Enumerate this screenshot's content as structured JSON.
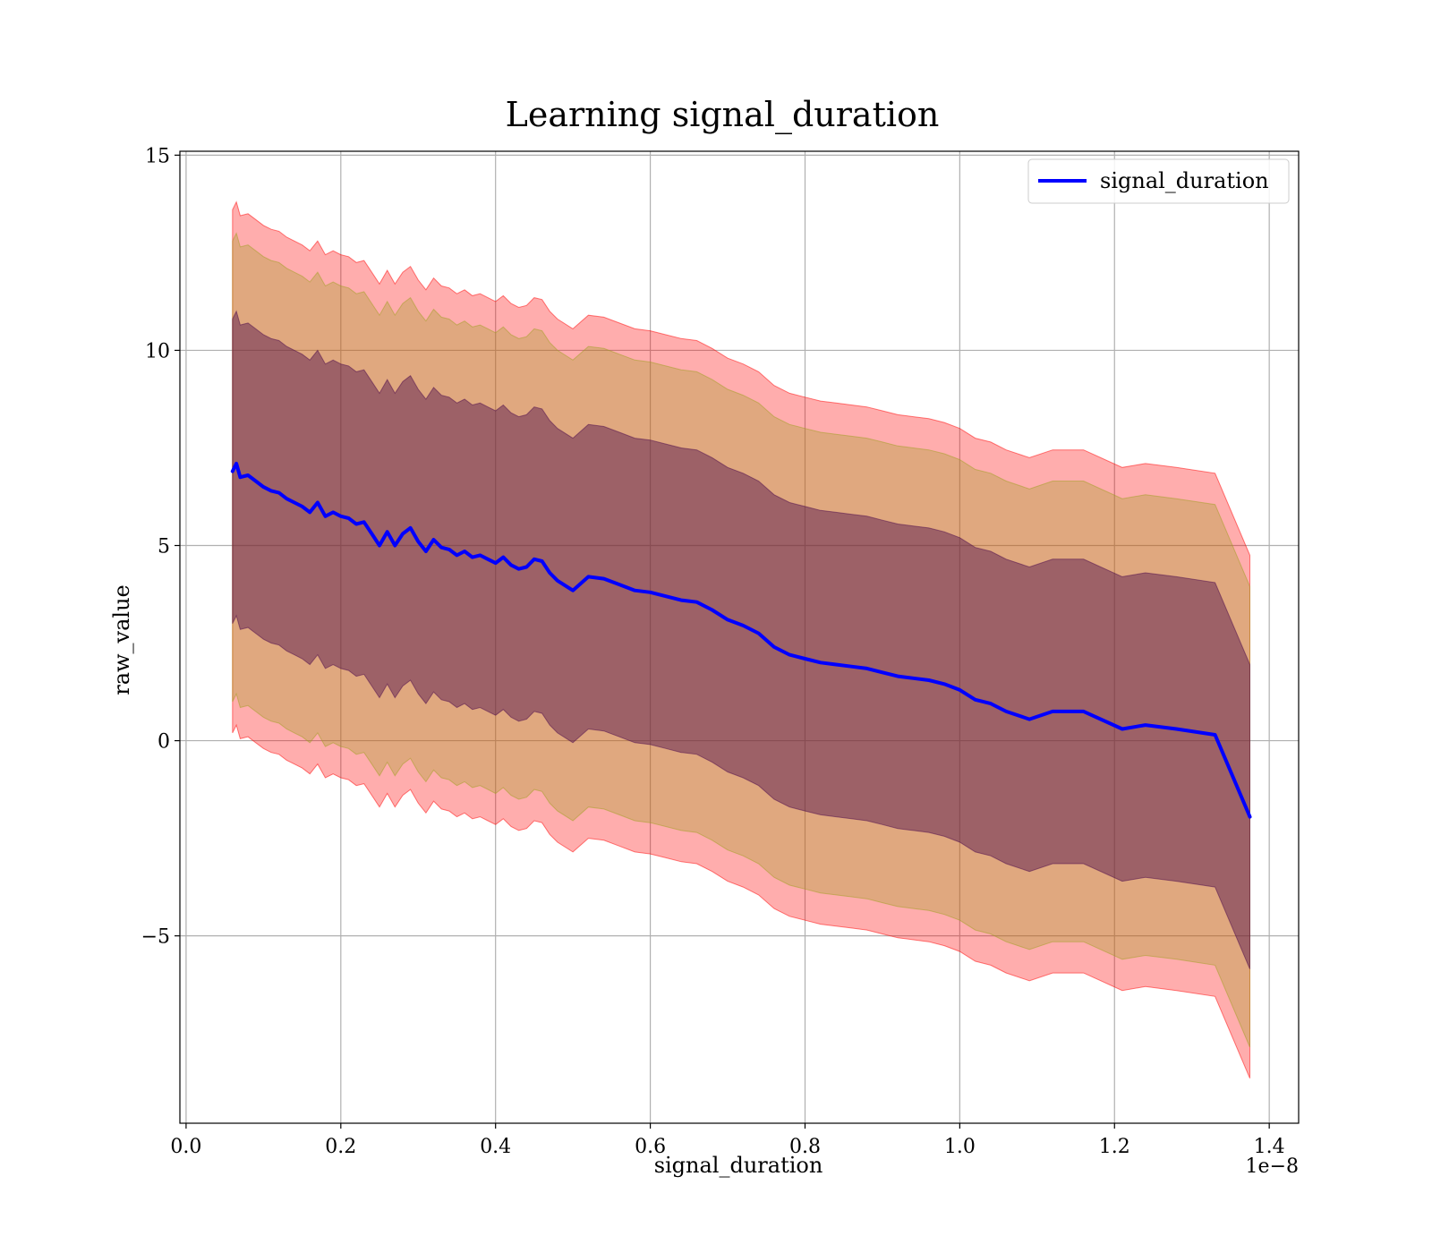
{
  "chart_data": {
    "type": "line",
    "title": "Learning signal_duration",
    "xlabel": "signal_duration",
    "ylabel": "raw_value",
    "x_offset_label": "1e−8",
    "xlim": [
      -0.008,
      1.438
    ],
    "ylim": [
      -9.8,
      15.1
    ],
    "x_ticks": [
      0.0,
      0.2,
      0.4,
      0.6,
      0.8,
      1.0,
      1.2,
      1.4
    ],
    "x_tick_labels": [
      "0.0",
      "0.2",
      "0.4",
      "0.6",
      "0.8",
      "1.0",
      "1.2",
      "1.4"
    ],
    "y_ticks": [
      -5,
      0,
      5,
      10,
      15
    ],
    "y_tick_labels": [
      "−5",
      "0",
      "5",
      "10",
      "15"
    ],
    "grid": true,
    "legend": {
      "position": "top-right",
      "entries": [
        "signal_duration"
      ]
    },
    "colors": {
      "line": "#0000ff",
      "band_outer": "#ff0000",
      "band_middle": "#a0a020",
      "band_inner": "#4b0a4b"
    },
    "series": [
      {
        "name": "signal_duration",
        "x": [
          0.06,
          0.065,
          0.07,
          0.08,
          0.09,
          0.1,
          0.11,
          0.12,
          0.13,
          0.14,
          0.15,
          0.16,
          0.17,
          0.18,
          0.19,
          0.2,
          0.21,
          0.22,
          0.23,
          0.24,
          0.25,
          0.26,
          0.27,
          0.28,
          0.29,
          0.3,
          0.31,
          0.32,
          0.33,
          0.34,
          0.35,
          0.36,
          0.37,
          0.38,
          0.39,
          0.4,
          0.41,
          0.42,
          0.43,
          0.44,
          0.45,
          0.46,
          0.47,
          0.48,
          0.5,
          0.52,
          0.54,
          0.56,
          0.58,
          0.6,
          0.62,
          0.64,
          0.66,
          0.68,
          0.7,
          0.72,
          0.74,
          0.76,
          0.78,
          0.8,
          0.82,
          0.84,
          0.86,
          0.88,
          0.9,
          0.92,
          0.94,
          0.96,
          0.98,
          1.0,
          1.02,
          1.04,
          1.06,
          1.09,
          1.12,
          1.16,
          1.21,
          1.24,
          1.28,
          1.33,
          1.375
        ],
        "y": [
          6.9,
          7.1,
          6.75,
          6.8,
          6.65,
          6.5,
          6.4,
          6.35,
          6.2,
          6.1,
          6.0,
          5.85,
          6.1,
          5.75,
          5.85,
          5.75,
          5.7,
          5.55,
          5.6,
          5.3,
          5.0,
          5.35,
          5.0,
          5.3,
          5.45,
          5.1,
          4.85,
          5.15,
          4.95,
          4.9,
          4.75,
          4.85,
          4.7,
          4.75,
          4.65,
          4.55,
          4.7,
          4.5,
          4.4,
          4.45,
          4.65,
          4.6,
          4.3,
          4.1,
          3.85,
          4.2,
          4.15,
          4.0,
          3.85,
          3.8,
          3.7,
          3.6,
          3.55,
          3.35,
          3.1,
          2.95,
          2.75,
          2.4,
          2.2,
          2.1,
          2.0,
          1.95,
          1.9,
          1.85,
          1.75,
          1.65,
          1.6,
          1.55,
          1.45,
          1.3,
          1.05,
          0.95,
          0.75,
          0.55,
          0.75,
          0.75,
          0.3,
          0.4,
          0.3,
          0.15,
          -1.95
        ]
      }
    ],
    "bands": [
      {
        "name": "outer",
        "half_width": 6.7
      },
      {
        "name": "middle",
        "half_width": 5.9
      },
      {
        "name": "inner",
        "half_width": 3.9
      }
    ]
  }
}
